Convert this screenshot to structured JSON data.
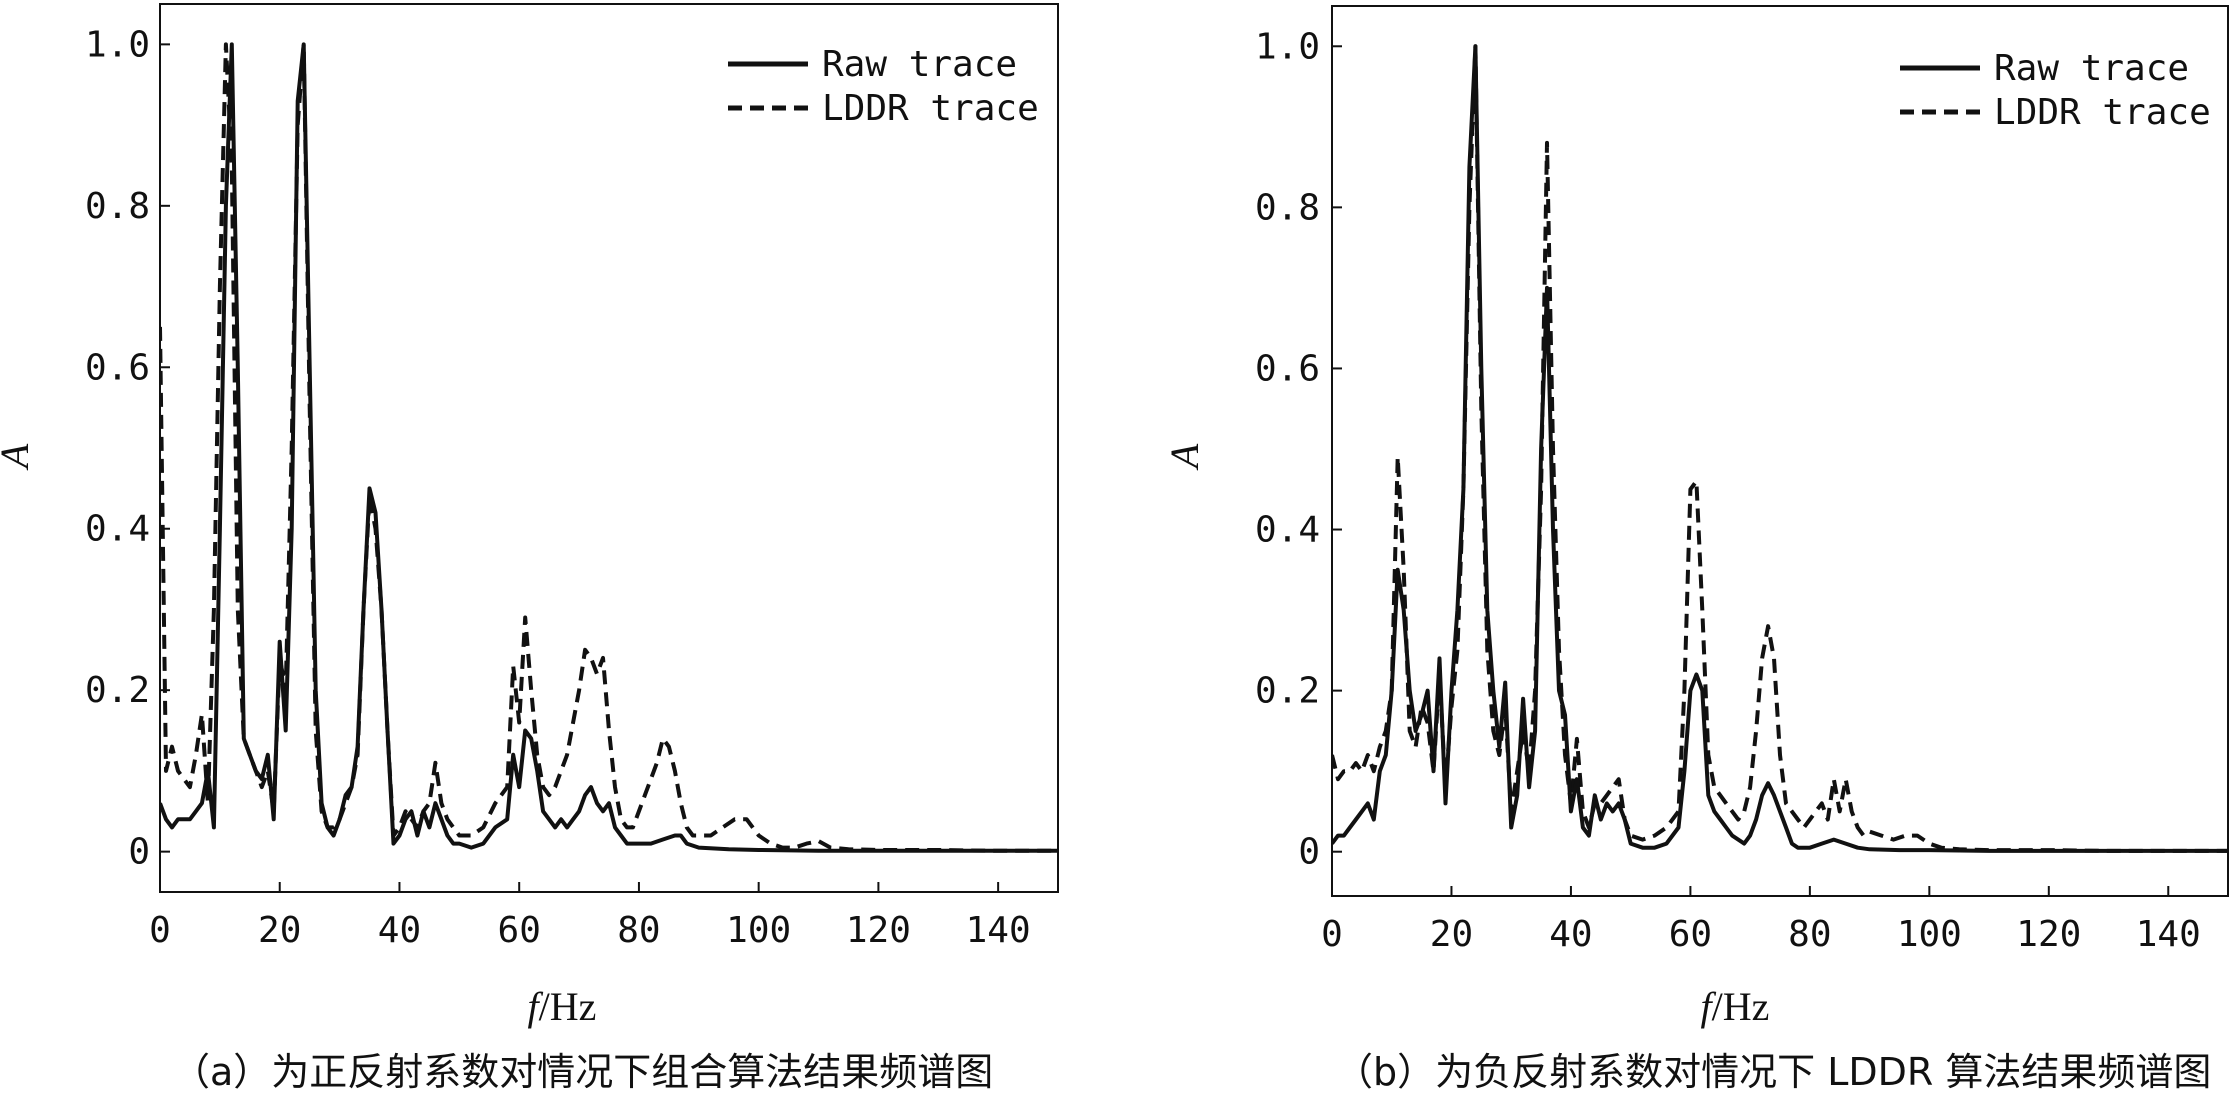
{
  "chart_data": [
    {
      "type": "line",
      "caption": "（a）为正反射系数对情况下组合算法结果频谱图",
      "xlabel_italic": "f",
      "xlabel_rest": "/Hz",
      "ylabel": "A",
      "xlim": [
        0,
        150
      ],
      "ylim": [
        -0.05,
        1.05
      ],
      "xticks": [
        0,
        20,
        40,
        60,
        80,
        100,
        120,
        140
      ],
      "yticks": [
        0,
        0.2,
        0.4,
        0.6,
        0.8,
        1.0
      ],
      "ytick_labels": [
        "0",
        "0.2",
        "0.4",
        "0.6",
        "0.8",
        "1.0"
      ],
      "grid": false,
      "legend_position": "top-right",
      "series": [
        {
          "name": "Raw trace",
          "style": "solid",
          "x": [
            0,
            1,
            2,
            3,
            4,
            5,
            6,
            7,
            8,
            9,
            10,
            11,
            12,
            13,
            14,
            15,
            16,
            17,
            18,
            19,
            20,
            21,
            22,
            23,
            24,
            25,
            26,
            27,
            28,
            29,
            30,
            31,
            32,
            33,
            34,
            35,
            36,
            37,
            38,
            39,
            40,
            41,
            42,
            43,
            44,
            45,
            46,
            47,
            48,
            49,
            50,
            52,
            54,
            56,
            58,
            59,
            60,
            61,
            62,
            63,
            64,
            65,
            66,
            67,
            68,
            69,
            70,
            71,
            72,
            73,
            74,
            75,
            76,
            77,
            78,
            80,
            82,
            84,
            86,
            87,
            88,
            90,
            95,
            100,
            110,
            120,
            130,
            140,
            150
          ],
          "y": [
            0.06,
            0.04,
            0.03,
            0.04,
            0.04,
            0.04,
            0.05,
            0.06,
            0.1,
            0.03,
            0.4,
            0.8,
            1.0,
            0.6,
            0.14,
            0.12,
            0.1,
            0.09,
            0.12,
            0.04,
            0.26,
            0.15,
            0.4,
            0.93,
            1.0,
            0.6,
            0.2,
            0.06,
            0.03,
            0.02,
            0.04,
            0.07,
            0.08,
            0.13,
            0.3,
            0.45,
            0.42,
            0.3,
            0.15,
            0.01,
            0.02,
            0.04,
            0.05,
            0.02,
            0.05,
            0.03,
            0.06,
            0.04,
            0.02,
            0.01,
            0.01,
            0.005,
            0.01,
            0.03,
            0.04,
            0.12,
            0.08,
            0.15,
            0.14,
            0.1,
            0.05,
            0.04,
            0.03,
            0.04,
            0.03,
            0.04,
            0.05,
            0.07,
            0.08,
            0.06,
            0.05,
            0.06,
            0.03,
            0.02,
            0.01,
            0.01,
            0.01,
            0.015,
            0.02,
            0.02,
            0.01,
            0.005,
            0.003,
            0.002,
            0.001,
            0.001,
            0.001,
            0.001,
            0.001
          ]
        },
        {
          "name": "LDDR trace",
          "style": "dashed",
          "x": [
            0,
            1,
            2,
            3,
            4,
            5,
            6,
            7,
            8,
            9,
            10,
            11,
            12,
            13,
            14,
            15,
            16,
            17,
            18,
            19,
            20,
            21,
            22,
            23,
            24,
            25,
            26,
            27,
            28,
            29,
            30,
            31,
            32,
            33,
            34,
            35,
            36,
            37,
            38,
            39,
            40,
            41,
            42,
            43,
            44,
            45,
            46,
            47,
            48,
            49,
            50,
            52,
            54,
            56,
            58,
            59,
            60,
            61,
            62,
            63,
            64,
            65,
            66,
            67,
            68,
            69,
            70,
            71,
            72,
            73,
            74,
            75,
            76,
            77,
            78,
            79,
            80,
            81,
            82,
            83,
            84,
            85,
            86,
            87,
            88,
            89,
            90,
            92,
            94,
            96,
            98,
            100,
            102,
            104,
            106,
            108,
            110,
            112,
            115,
            120,
            130,
            140,
            150
          ],
          "y": [
            0.65,
            0.1,
            0.13,
            0.1,
            0.09,
            0.08,
            0.12,
            0.17,
            0.06,
            0.3,
            0.7,
            1.0,
            0.85,
            0.3,
            0.14,
            0.12,
            0.1,
            0.08,
            0.1,
            0.05,
            0.24,
            0.2,
            0.5,
            0.9,
            1.0,
            0.55,
            0.15,
            0.05,
            0.03,
            0.03,
            0.04,
            0.06,
            0.08,
            0.12,
            0.3,
            0.44,
            0.4,
            0.3,
            0.15,
            0.02,
            0.03,
            0.05,
            0.04,
            0.03,
            0.05,
            0.06,
            0.11,
            0.06,
            0.04,
            0.03,
            0.02,
            0.02,
            0.03,
            0.06,
            0.08,
            0.23,
            0.16,
            0.29,
            0.2,
            0.12,
            0.08,
            0.07,
            0.08,
            0.1,
            0.12,
            0.16,
            0.2,
            0.25,
            0.24,
            0.22,
            0.24,
            0.15,
            0.08,
            0.04,
            0.03,
            0.03,
            0.05,
            0.07,
            0.09,
            0.11,
            0.14,
            0.13,
            0.1,
            0.06,
            0.03,
            0.02,
            0.02,
            0.02,
            0.03,
            0.04,
            0.04,
            0.02,
            0.01,
            0.005,
            0.005,
            0.01,
            0.013,
            0.005,
            0.003,
            0.002,
            0.002,
            0.001,
            0.001
          ]
        }
      ]
    },
    {
      "type": "line",
      "caption": "（b）为负反射系数对情况下 LDDR 算法结果频谱图",
      "xlabel_italic": "f",
      "xlabel_rest": "/Hz",
      "ylabel": "A",
      "xlim": [
        0,
        150
      ],
      "ylim": [
        -0.055,
        1.05
      ],
      "xticks": [
        0,
        20,
        40,
        60,
        80,
        100,
        120,
        140
      ],
      "yticks": [
        0,
        0.2,
        0.4,
        0.6,
        0.8,
        1.0
      ],
      "ytick_labels": [
        "0",
        "0.2",
        "0.4",
        "0.6",
        "0.8",
        "1.0"
      ],
      "grid": false,
      "legend_position": "top-right",
      "series": [
        {
          "name": "Raw trace",
          "style": "solid",
          "x": [
            0,
            1,
            2,
            3,
            4,
            5,
            6,
            7,
            8,
            9,
            10,
            11,
            12,
            13,
            14,
            15,
            16,
            17,
            18,
            19,
            20,
            21,
            22,
            23,
            24,
            25,
            26,
            27,
            28,
            29,
            30,
            31,
            32,
            33,
            34,
            35,
            36,
            37,
            38,
            39,
            40,
            41,
            42,
            43,
            44,
            45,
            46,
            47,
            48,
            49,
            50,
            52,
            54,
            56,
            58,
            59,
            60,
            61,
            62,
            63,
            64,
            65,
            66,
            67,
            68,
            69,
            70,
            71,
            72,
            73,
            74,
            75,
            76,
            77,
            78,
            80,
            82,
            84,
            86,
            88,
            90,
            95,
            100,
            110,
            120,
            130,
            140,
            150
          ],
          "y": [
            0.01,
            0.02,
            0.02,
            0.03,
            0.04,
            0.05,
            0.06,
            0.04,
            0.1,
            0.12,
            0.2,
            0.35,
            0.3,
            0.2,
            0.15,
            0.17,
            0.2,
            0.1,
            0.24,
            0.06,
            0.2,
            0.3,
            0.45,
            0.85,
            1.0,
            0.6,
            0.3,
            0.2,
            0.13,
            0.21,
            0.03,
            0.07,
            0.19,
            0.08,
            0.15,
            0.5,
            0.7,
            0.4,
            0.2,
            0.17,
            0.05,
            0.09,
            0.03,
            0.02,
            0.07,
            0.04,
            0.06,
            0.05,
            0.06,
            0.04,
            0.01,
            0.005,
            0.005,
            0.01,
            0.03,
            0.1,
            0.2,
            0.22,
            0.2,
            0.07,
            0.05,
            0.04,
            0.03,
            0.02,
            0.015,
            0.01,
            0.02,
            0.04,
            0.07,
            0.085,
            0.07,
            0.05,
            0.03,
            0.01,
            0.005,
            0.005,
            0.01,
            0.015,
            0.01,
            0.005,
            0.003,
            0.002,
            0.002,
            0.001,
            0.001,
            0.001,
            0.001,
            0.001
          ]
        },
        {
          "name": "LDDR trace",
          "style": "dashed",
          "x": [
            0,
            1,
            2,
            3,
            4,
            5,
            6,
            7,
            8,
            9,
            10,
            11,
            12,
            13,
            14,
            15,
            16,
            17,
            18,
            19,
            20,
            21,
            22,
            23,
            24,
            25,
            26,
            27,
            28,
            29,
            30,
            31,
            32,
            33,
            34,
            35,
            36,
            37,
            38,
            39,
            40,
            41,
            42,
            43,
            44,
            45,
            46,
            47,
            48,
            49,
            50,
            52,
            54,
            56,
            58,
            59,
            60,
            61,
            62,
            63,
            64,
            65,
            66,
            67,
            68,
            69,
            70,
            71,
            72,
            73,
            74,
            75,
            76,
            77,
            78,
            79,
            80,
            81,
            82,
            83,
            84,
            85,
            86,
            87,
            88,
            89,
            90,
            92,
            94,
            96,
            98,
            100,
            102,
            105,
            110,
            120,
            130,
            140,
            150
          ],
          "y": [
            0.12,
            0.09,
            0.1,
            0.1,
            0.11,
            0.1,
            0.12,
            0.1,
            0.13,
            0.15,
            0.2,
            0.49,
            0.35,
            0.15,
            0.13,
            0.18,
            0.16,
            0.1,
            0.22,
            0.08,
            0.18,
            0.25,
            0.45,
            0.8,
            1.0,
            0.55,
            0.25,
            0.15,
            0.12,
            0.18,
            0.05,
            0.1,
            0.15,
            0.1,
            0.2,
            0.45,
            0.88,
            0.5,
            0.25,
            0.12,
            0.06,
            0.14,
            0.05,
            0.03,
            0.06,
            0.06,
            0.07,
            0.08,
            0.09,
            0.04,
            0.02,
            0.015,
            0.02,
            0.03,
            0.05,
            0.2,
            0.45,
            0.46,
            0.3,
            0.12,
            0.08,
            0.07,
            0.06,
            0.05,
            0.04,
            0.05,
            0.08,
            0.15,
            0.24,
            0.28,
            0.24,
            0.12,
            0.06,
            0.05,
            0.04,
            0.03,
            0.04,
            0.05,
            0.06,
            0.04,
            0.09,
            0.05,
            0.09,
            0.05,
            0.03,
            0.02,
            0.025,
            0.02,
            0.015,
            0.02,
            0.02,
            0.01,
            0.005,
            0.003,
            0.002,
            0.002,
            0.001,
            0.001,
            0.001
          ]
        }
      ]
    }
  ]
}
